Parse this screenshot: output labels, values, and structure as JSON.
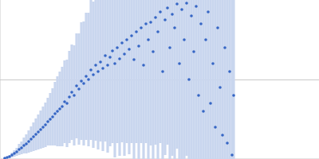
{
  "chart_data": {
    "type": "scatter",
    "color": "#3565c4",
    "marker": "circle",
    "grid": true,
    "tick_labels": false,
    "xlim": [
      0,
      400
    ],
    "ylim": [
      0,
      200
    ],
    "yticks": [
      100
    ],
    "x": [
      6,
      9,
      12,
      15,
      18,
      21,
      24,
      27,
      30,
      33,
      36,
      39,
      42,
      45,
      48,
      51,
      54,
      57,
      60,
      63,
      66,
      69,
      72,
      75,
      78,
      81,
      84,
      87,
      90,
      93,
      96,
      99,
      102,
      105,
      108,
      111,
      114,
      117,
      120,
      123,
      126,
      129,
      132,
      135,
      138,
      141,
      144,
      147,
      150,
      153,
      156,
      159,
      162,
      165,
      168,
      171,
      174,
      177,
      180,
      183,
      186,
      189,
      192,
      195,
      198,
      201,
      204,
      207,
      210,
      213,
      216,
      219,
      222,
      225,
      228,
      231,
      234,
      237,
      240,
      243,
      246,
      249,
      252,
      255,
      258,
      261,
      264,
      267,
      270,
      273,
      276,
      279,
      282,
      285,
      288,
      291,
      293
    ],
    "values": [
      1,
      2,
      3,
      5,
      7,
      9,
      12,
      14,
      17,
      19,
      22,
      25,
      28,
      31,
      34,
      37,
      40,
      43,
      47,
      50,
      53,
      57,
      60,
      63,
      66,
      72,
      70,
      78,
      84,
      80,
      92,
      88,
      98,
      95,
      104,
      100,
      112,
      106,
      118,
      110,
      122,
      114,
      130,
      118,
      128,
      136,
      120,
      140,
      126,
      146,
      132,
      150,
      138,
      155,
      125,
      160,
      142,
      165,
      118,
      170,
      150,
      172,
      135,
      178,
      160,
      185,
      110,
      175,
      190,
      140,
      182,
      165,
      195,
      120,
      188,
      150,
      196,
      100,
      180,
      135,
      192,
      80,
      170,
      60,
      150,
      185,
      70,
      120,
      40,
      165,
      90,
      30,
      140,
      20,
      110,
      5,
      80
    ],
    "errors": [
      1,
      1,
      2,
      3,
      4,
      5,
      7,
      8,
      10,
      12,
      14,
      16,
      18,
      20,
      22,
      24,
      26,
      28,
      30,
      33,
      36,
      40,
      44,
      47,
      50,
      52,
      55,
      58,
      60,
      63,
      66,
      70,
      74,
      78,
      80,
      84,
      88,
      92,
      95,
      98,
      100,
      104,
      108,
      110,
      112,
      116,
      118,
      120,
      122,
      125,
      128,
      130,
      132,
      135,
      138,
      140,
      142,
      145,
      148,
      150,
      152,
      155,
      158,
      160,
      162,
      165,
      168,
      170,
      172,
      175,
      178,
      180,
      182,
      185,
      188,
      190,
      192,
      195,
      198,
      200,
      202,
      205,
      208,
      210,
      212,
      215,
      218,
      220,
      222,
      225,
      228,
      230,
      232,
      235,
      238,
      240,
      242
    ]
  }
}
